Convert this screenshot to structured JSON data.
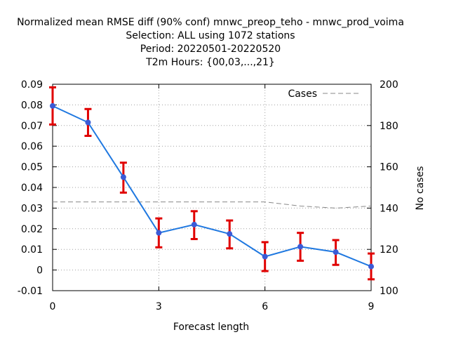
{
  "chart_data": {
    "type": "line",
    "title": [
      "Normalized mean RMSE diff (90% conf) mnwc_preop_teho - mnwc_prod_voima",
      "Selection: ALL using  1072 stations",
      "Period: 20220501-20220520",
      "T2m   Hours: {00,03,...,21}"
    ],
    "xlabel": "Forecast length",
    "ylabel": "",
    "y2label": "No cases",
    "xlim": [
      0,
      9
    ],
    "ylim": [
      -0.01,
      0.09
    ],
    "y2lim": [
      100,
      200
    ],
    "xticks": [
      "0",
      "3",
      "6",
      "9"
    ],
    "yticks": [
      "-0.01",
      "0",
      "0.01",
      "0.02",
      "0.03",
      "0.04",
      "0.05",
      "0.06",
      "0.07",
      "0.08",
      "0.09"
    ],
    "y2ticks": [
      "100",
      "120",
      "140",
      "160",
      "180",
      "200"
    ],
    "grid": true,
    "legend_position": "top-right",
    "series": [
      {
        "axis": "y",
        "color": "#1f78e0",
        "marker_color": "#3b5bd6",
        "errorbar_color": "#e00000",
        "x": [
          0,
          1,
          2,
          3,
          4,
          5,
          6,
          7,
          8,
          9
        ],
        "values": [
          0.0795,
          0.0715,
          0.045,
          0.018,
          0.022,
          0.0175,
          0.0065,
          0.0113,
          0.0087,
          0.0017
        ],
        "err_low": [
          0.0705,
          0.065,
          0.0375,
          0.011,
          0.015,
          0.0105,
          -0.0005,
          0.0045,
          0.0025,
          -0.0045
        ],
        "err_high": [
          0.0885,
          0.078,
          0.052,
          0.025,
          0.0285,
          0.024,
          0.0135,
          0.018,
          0.0145,
          0.008
        ]
      },
      {
        "name": "Cases",
        "axis": "y2",
        "color": "#888888",
        "dash": true,
        "x": [
          0,
          1,
          2,
          3,
          4,
          5,
          6,
          7,
          8,
          9
        ],
        "values": [
          143,
          143,
          143,
          143,
          143,
          143,
          143,
          141,
          140,
          141
        ]
      }
    ]
  }
}
